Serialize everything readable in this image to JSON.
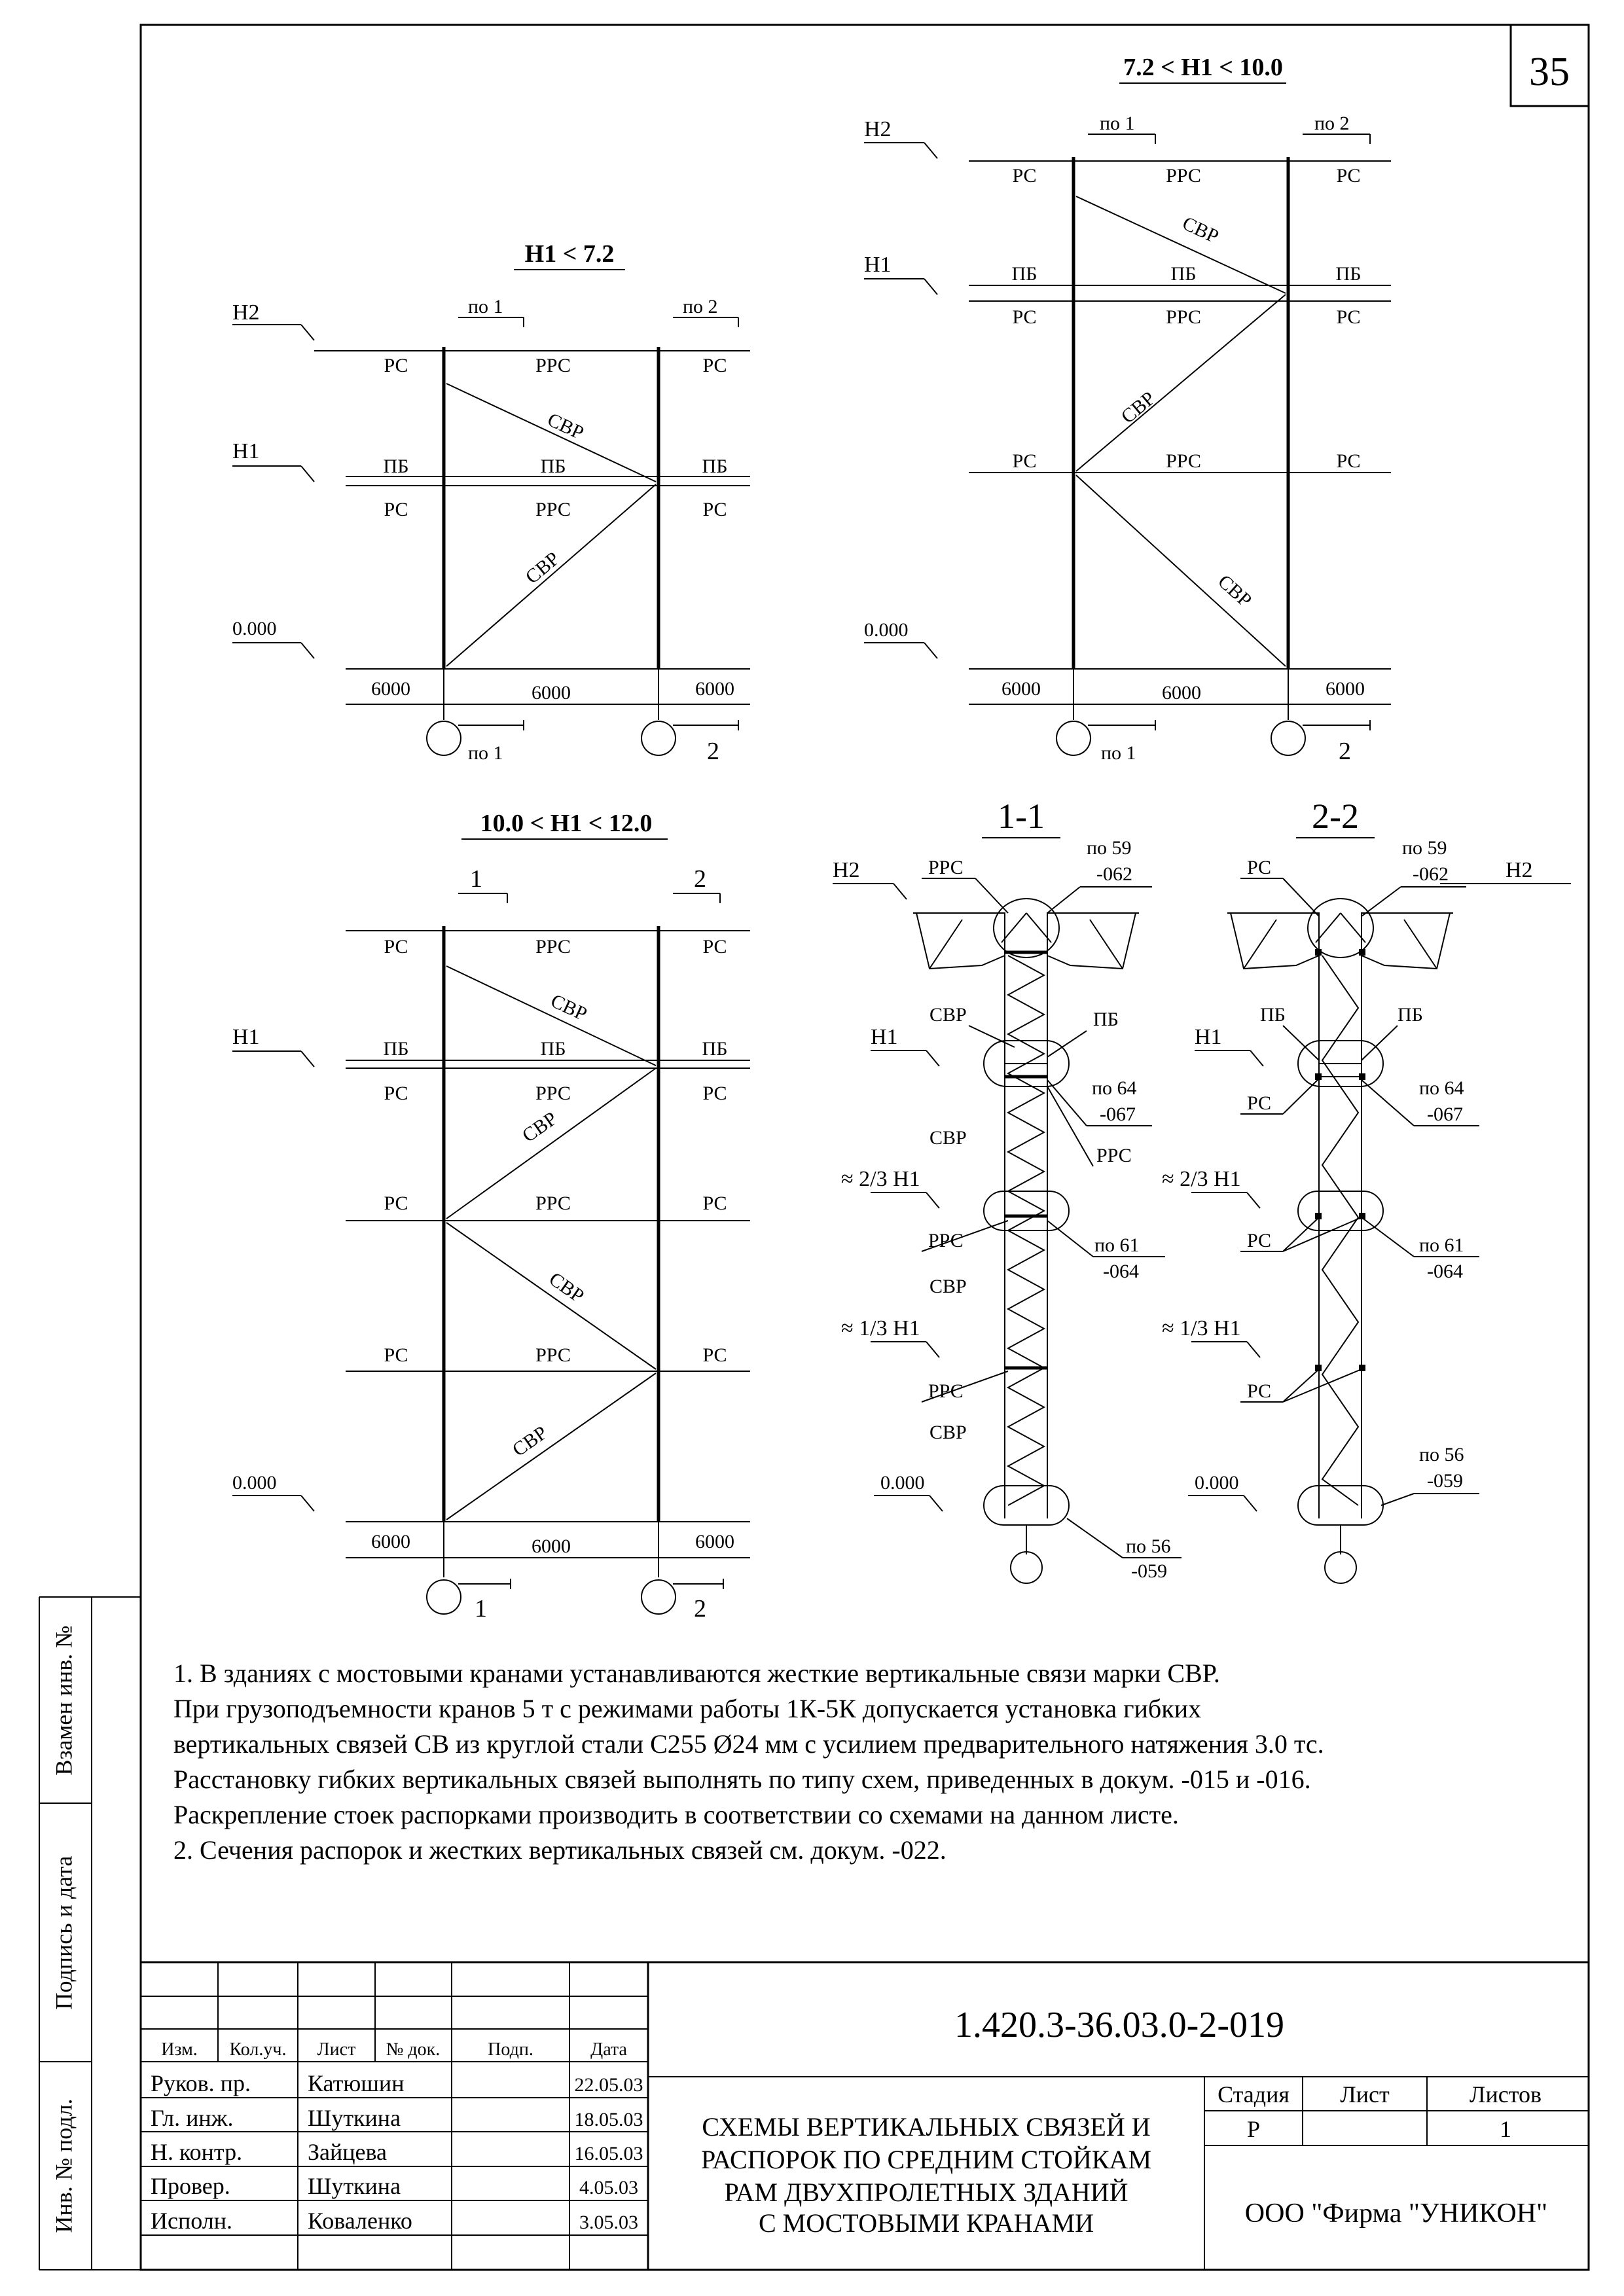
{
  "sheet_number": "35",
  "schemes": {
    "a": {
      "title": "H1 < 7.2"
    },
    "b": {
      "title": "7.2 < H1 < 10.0"
    },
    "c": {
      "title": "10.0 < H1 < 12.0"
    }
  },
  "sections": {
    "s11": "1-1",
    "s22": "2-2"
  },
  "labels": {
    "H2": "H2",
    "H1": "H1",
    "zero": "0.000",
    "span": "6000",
    "RS": "РС",
    "RRS": "РРС",
    "PB": "ПБ",
    "SVR": "СВР",
    "po1": "по 1",
    "po2": "по 2",
    "one": "1",
    "two": "2",
    "two_thirds": "≈ 2/3 H1",
    "one_third": "≈ 1/3 H1",
    "ref59a": "по 59",
    "ref59b": "-062",
    "ref64a": "по 64",
    "ref64b": "-067",
    "ref61a": "по 61",
    "ref61b": "-064",
    "ref56a": "по 56",
    "ref56b": "-059"
  },
  "notes": [
    "1. В зданиях с мостовыми кранами устанавливаются  жесткие  вертикальные связи марки СВР.",
    "При грузоподъемности кранов 5 т с режимами работы 1К-5К допускается установка гибких",
    "вертикальных связей СВ из  круглой стали С255 Ø24 мм с усилием предварительного натяжения 3.0 тс.",
    "Расстановку гибких вертикальных связей выполнять по типу схем, приведенных в докум. -015 и -016.",
    "Раскрепление стоек распорками производить в соответствии со схемами на данном листе.",
    "2. Сечения  распорок и жестких вертикальных связей см. докум. -022."
  ],
  "side_stamps": [
    "Взамен инв. №",
    "Подпись и дата",
    "Инв. № подл."
  ],
  "title_block": {
    "doc_code": "1.420.3-36.03.0-2-019",
    "headers": [
      "Изм.",
      "Кол.уч.",
      "Лист",
      "№ док.",
      "Подп.",
      "Дата"
    ],
    "signatures": [
      {
        "role": "Руков. пр.",
        "name": "Катюшин",
        "date": "22.05.03"
      },
      {
        "role": "Гл. инж.",
        "name": "Шуткина",
        "date": "18.05.03"
      },
      {
        "role": "Н. контр.",
        "name": "Зайцева",
        "date": "16.05.03"
      },
      {
        "role": "Провер.",
        "name": "Шуткина",
        "date": "4.05.03"
      },
      {
        "role": "Исполн.",
        "name": "Коваленко",
        "date": "3.05.03"
      }
    ],
    "title_lines": [
      "СХЕМЫ ВЕРТИКАЛЬНЫХ СВЯЗЕЙ И",
      "РАСПОРОК ПО СРЕДНИМ СТОЙКАМ",
      "РАМ ДВУХПРОЛЕТНЫХ ЗДАНИЙ",
      "С МОСТОВЫМИ КРАНАМИ"
    ],
    "stage_label": "Стадия",
    "sheet_label": "Лист",
    "sheets_label": "Листов",
    "stage": "Р",
    "sheets_total": "1",
    "company": "ООО  \"Фирма \"УНИКОН\""
  }
}
